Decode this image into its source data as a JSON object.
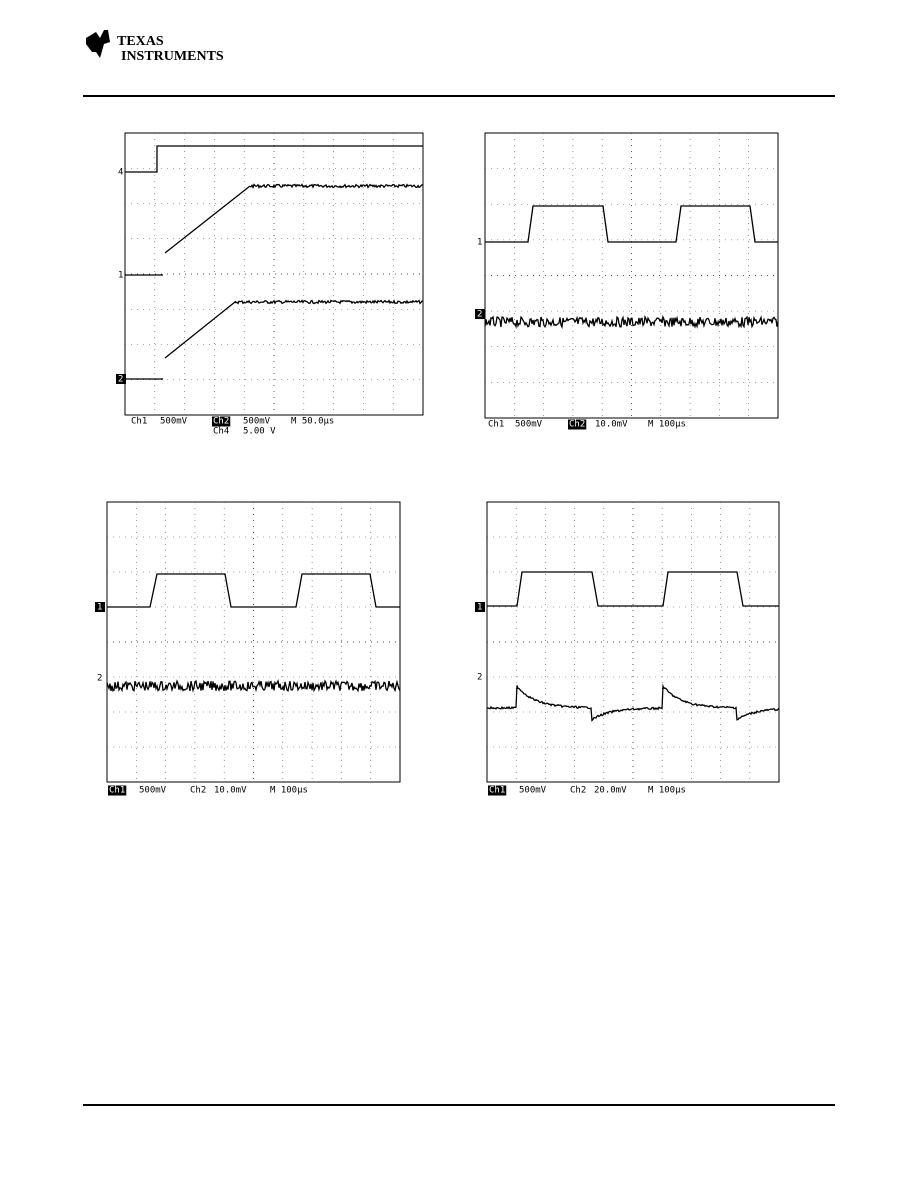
{
  "header": {
    "logo_line1": "TEXAS",
    "logo_line2": "INSTRUMENTS"
  },
  "scopes": [
    {
      "markers": [
        "4",
        "1",
        "2"
      ],
      "readout": [
        "Ch1",
        "500mV",
        "Ch2",
        "500mV",
        "M 50.0µs",
        "Ch4",
        "5.00 V"
      ]
    },
    {
      "markers": [
        "1",
        "2"
      ],
      "readout": [
        "Ch1",
        "500mV",
        "Ch2",
        "10.0mV",
        "M 100µs"
      ]
    },
    {
      "markers": [
        "1",
        "2"
      ],
      "readout": [
        "Ch1",
        "500mV",
        "Ch2",
        "10.0mV",
        "M 100µs"
      ]
    },
    {
      "markers": [
        "1",
        "2"
      ],
      "readout": [
        "Ch1",
        "500mV",
        "Ch2",
        "20.0mV",
        "M 100µs"
      ]
    }
  ]
}
